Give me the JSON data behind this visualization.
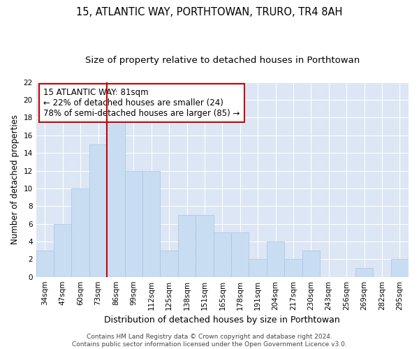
{
  "title": "15, ATLANTIC WAY, PORTHTOWAN, TRURO, TR4 8AH",
  "subtitle": "Size of property relative to detached houses in Porthtowan",
  "xlabel": "Distribution of detached houses by size in Porthtowan",
  "ylabel": "Number of detached properties",
  "categories": [
    "34sqm",
    "47sqm",
    "60sqm",
    "73sqm",
    "86sqm",
    "99sqm",
    "112sqm",
    "125sqm",
    "138sqm",
    "151sqm",
    "165sqm",
    "178sqm",
    "191sqm",
    "204sqm",
    "217sqm",
    "230sqm",
    "243sqm",
    "256sqm",
    "269sqm",
    "282sqm",
    "295sqm"
  ],
  "values": [
    3,
    6,
    10,
    15,
    18,
    12,
    12,
    3,
    7,
    7,
    5,
    5,
    2,
    4,
    2,
    3,
    0,
    0,
    1,
    0,
    2
  ],
  "bar_color": "#c9ddf2",
  "bar_edge_color": "#a8c4e0",
  "red_line_index": 4,
  "ylim": [
    0,
    22
  ],
  "yticks": [
    0,
    2,
    4,
    6,
    8,
    10,
    12,
    14,
    16,
    18,
    20,
    22
  ],
  "annotation_text": "15 ATLANTIC WAY: 81sqm\n← 22% of detached houses are smaller (24)\n78% of semi-detached houses are larger (85) →",
  "annotation_box_facecolor": "#ffffff",
  "annotation_box_edgecolor": "#cc0000",
  "footer_line1": "Contains HM Land Registry data © Crown copyright and database right 2024.",
  "footer_line2": "Contains public sector information licensed under the Open Government Licence v3.0.",
  "plot_bg": "#dce6f5",
  "grid_color": "#ffffff",
  "title_fontsize": 10.5,
  "subtitle_fontsize": 9.5,
  "xlabel_fontsize": 9,
  "ylabel_fontsize": 8.5,
  "tick_fontsize": 7.5,
  "footer_fontsize": 6.5,
  "annotation_fontsize": 8.5
}
